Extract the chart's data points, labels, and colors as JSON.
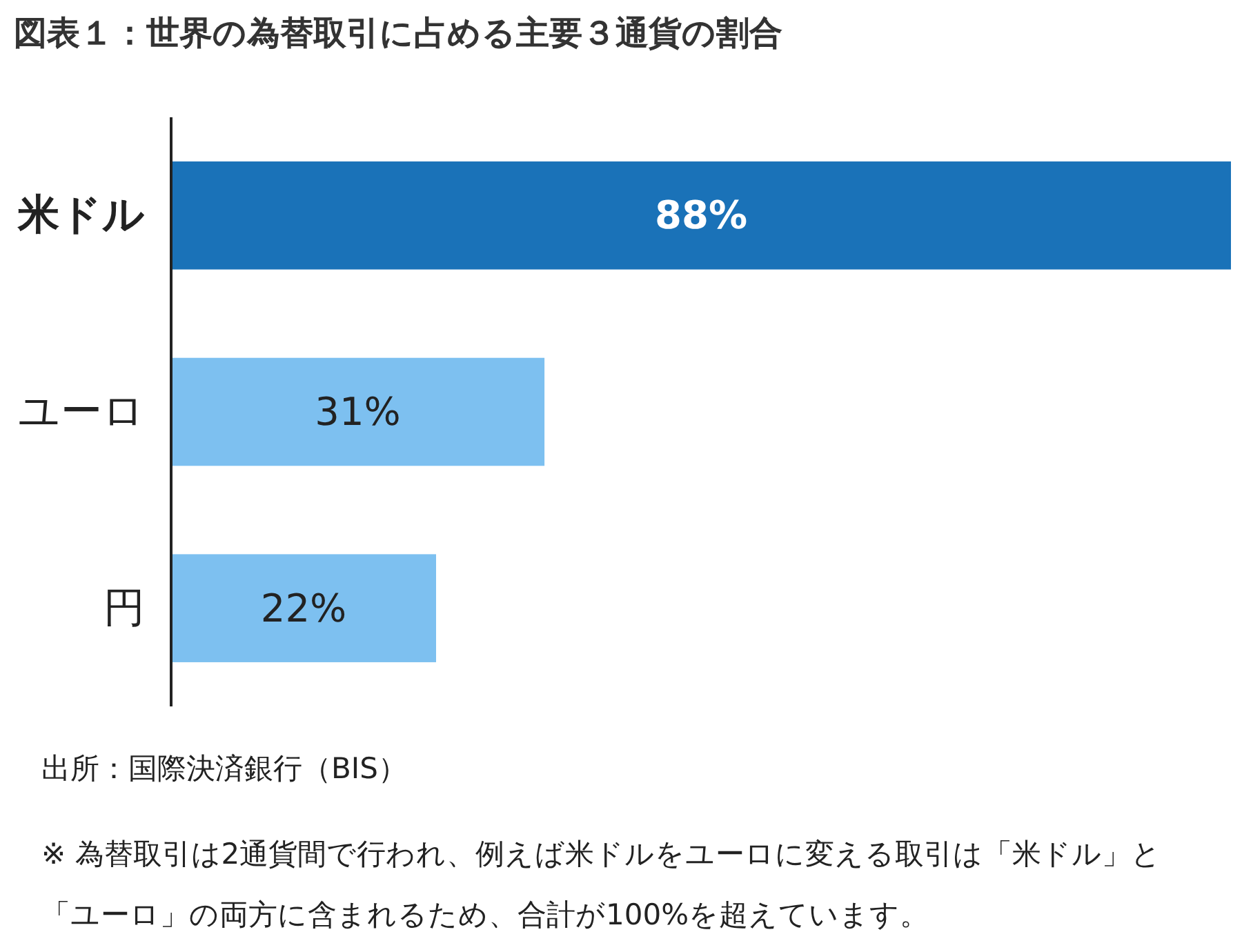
{
  "chart_data": {
    "type": "bar",
    "orientation": "horizontal",
    "title": "図表１：世界の為替取引に占める主要３通貨の割合",
    "categories": [
      "米ドル",
      "ユーロ",
      "円"
    ],
    "values": [
      88,
      31,
      22
    ],
    "value_labels": [
      "88%",
      "31%",
      "22%"
    ],
    "colors": [
      "#1a72b8",
      "#7dc0f0",
      "#7dc0f0"
    ],
    "annotations": [
      "出所：国際決済銀行（BIS）",
      "※ 為替取引は2通貨間で行われ、例えば米ドルをユーロに変える取引は「米ドル」と「ユーロ」の両方に含まれるため、合計が100%を超えています。"
    ]
  }
}
